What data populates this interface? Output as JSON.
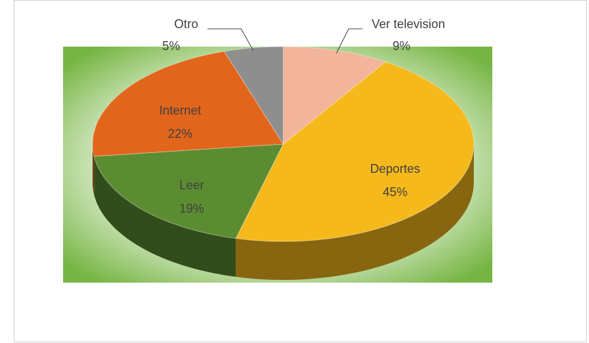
{
  "chart_data": {
    "type": "pie3d",
    "categories": [
      "Ver television",
      "Deportes",
      "Leer",
      "Internet",
      "Otro"
    ],
    "values": [
      9,
      45,
      19,
      22,
      5
    ],
    "value_labels": [
      "9%",
      "45%",
      "19%",
      "22%",
      "5%"
    ],
    "colors": [
      "#f2b49a",
      "#f6b91c",
      "#5b8c31",
      "#e2651c",
      "#8e8e8e"
    ]
  }
}
